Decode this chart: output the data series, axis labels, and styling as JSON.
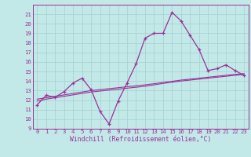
{
  "title": "",
  "xlabel": "Windchill (Refroidissement éolien,°C)",
  "bg_color": "#c2e8e8",
  "grid_color": "#aad4d4",
  "line_color": "#993399",
  "x_hours": [
    0,
    1,
    2,
    3,
    4,
    5,
    6,
    7,
    8,
    9,
    10,
    11,
    12,
    13,
    14,
    15,
    16,
    17,
    18,
    19,
    20,
    21,
    22,
    23
  ],
  "temp_line": [
    11.5,
    12.5,
    12.3,
    12.9,
    13.8,
    14.3,
    13.1,
    10.8,
    9.5,
    11.9,
    13.8,
    15.8,
    18.5,
    19.0,
    19.0,
    21.2,
    20.3,
    18.8,
    17.3,
    15.1,
    15.3,
    15.7,
    15.1,
    14.6
  ],
  "trend1": [
    11.9,
    12.1,
    12.25,
    12.4,
    12.55,
    12.7,
    12.85,
    12.95,
    13.05,
    13.15,
    13.25,
    13.35,
    13.45,
    13.6,
    13.75,
    13.88,
    14.0,
    14.1,
    14.2,
    14.3,
    14.4,
    14.5,
    14.6,
    14.68
  ],
  "trend2": [
    12.1,
    12.25,
    12.4,
    12.55,
    12.7,
    12.85,
    13.0,
    13.1,
    13.2,
    13.3,
    13.4,
    13.5,
    13.6,
    13.72,
    13.85,
    13.97,
    14.1,
    14.2,
    14.3,
    14.4,
    14.5,
    14.6,
    14.7,
    14.78
  ],
  "xlim": [
    -0.5,
    23.5
  ],
  "ylim": [
    9,
    22
  ],
  "yticks": [
    9,
    10,
    11,
    12,
    13,
    14,
    15,
    16,
    17,
    18,
    19,
    20,
    21
  ],
  "xticks": [
    0,
    1,
    2,
    3,
    4,
    5,
    6,
    7,
    8,
    9,
    10,
    11,
    12,
    13,
    14,
    15,
    16,
    17,
    18,
    19,
    20,
    21,
    22,
    23
  ],
  "tick_fontsize": 5.2,
  "xlabel_fontsize": 5.8
}
